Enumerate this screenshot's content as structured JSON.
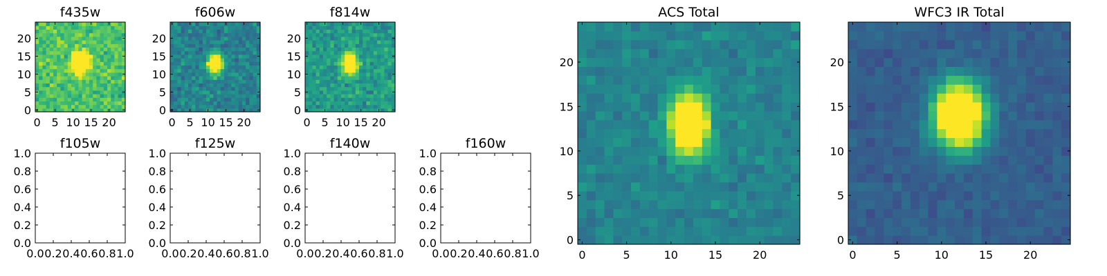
{
  "chart_data": [
    {
      "type": "heatmap",
      "title": "f435w",
      "grid_size": 25,
      "cmap": "viridis",
      "xlim": [
        -0.5,
        24.5
      ],
      "ylim": [
        -0.5,
        24.5
      ],
      "xticks": [
        0,
        5,
        10,
        15,
        20
      ],
      "yticks": [
        0,
        5,
        10,
        15,
        20
      ],
      "source_center": [
        12,
        13
      ],
      "source_sigma": [
        1.5,
        2.0
      ],
      "background_level": 0.72,
      "noise_level": 0.22,
      "seed": 11
    },
    {
      "type": "heatmap",
      "title": "f606w",
      "grid_size": 25,
      "cmap": "viridis",
      "xlim": [
        -0.5,
        24.5
      ],
      "ylim": [
        -0.5,
        24.5
      ],
      "xticks": [
        0,
        5,
        10,
        15,
        20
      ],
      "yticks": [
        0,
        5,
        10,
        15,
        20
      ],
      "source_center": [
        12,
        13
      ],
      "source_sigma": [
        1.3,
        1.8
      ],
      "background_level": 0.45,
      "noise_level": 0.22,
      "seed": 23
    },
    {
      "type": "heatmap",
      "title": "f814w",
      "grid_size": 25,
      "cmap": "viridis",
      "xlim": [
        -0.5,
        24.5
      ],
      "ylim": [
        -0.5,
        24.5
      ],
      "xticks": [
        0,
        5,
        10,
        15,
        20
      ],
      "yticks": [
        0,
        5,
        10,
        15,
        20
      ],
      "source_center": [
        12,
        13
      ],
      "source_sigma": [
        1.3,
        1.8
      ],
      "background_level": 0.55,
      "noise_level": 0.22,
      "seed": 37
    },
    {
      "type": "empty",
      "title": "f105w",
      "xlim": [
        0,
        1
      ],
      "ylim": [
        0,
        1
      ],
      "xticks": [
        "0.0",
        "0.2",
        "0.4",
        "0.6",
        "0.8",
        "1.0"
      ],
      "yticks": [
        "0.0",
        "0.2",
        "0.4",
        "0.6",
        "0.8",
        "1.0"
      ]
    },
    {
      "type": "empty",
      "title": "f125w",
      "xlim": [
        0,
        1
      ],
      "ylim": [
        0,
        1
      ],
      "xticks": [
        "0.0",
        "0.2",
        "0.4",
        "0.6",
        "0.8",
        "1.0"
      ],
      "yticks": [
        "0.0",
        "0.2",
        "0.4",
        "0.6",
        "0.8",
        "1.0"
      ]
    },
    {
      "type": "empty",
      "title": "f140w",
      "xlim": [
        0,
        1
      ],
      "ylim": [
        0,
        1
      ],
      "xticks": [
        "0.0",
        "0.2",
        "0.4",
        "0.6",
        "0.8",
        "1.0"
      ],
      "yticks": [
        "0.0",
        "0.2",
        "0.4",
        "0.6",
        "0.8",
        "1.0"
      ]
    },
    {
      "type": "empty",
      "title": "f160w",
      "xlim": [
        0,
        1
      ],
      "ylim": [
        0,
        1
      ],
      "xticks": [
        "0.0",
        "0.2",
        "0.4",
        "0.6",
        "0.8",
        "1.0"
      ],
      "yticks": [
        "0.0",
        "0.2",
        "0.4",
        "0.6",
        "0.8",
        "1.0"
      ]
    },
    {
      "type": "heatmap",
      "title": "ACS Total",
      "grid_size": 25,
      "cmap": "viridis",
      "xlim": [
        -0.5,
        24.5
      ],
      "ylim": [
        -0.5,
        24.5
      ],
      "xticks": [
        0,
        5,
        10,
        15,
        20
      ],
      "yticks": [
        0,
        5,
        10,
        15,
        20
      ],
      "source_center": [
        12,
        13
      ],
      "source_sigma": [
        1.4,
        2.2
      ],
      "background_level": 0.45,
      "noise_level": 0.13,
      "seed": 51
    },
    {
      "type": "heatmap",
      "title": "WFC3 IR Total",
      "grid_size": 25,
      "cmap": "viridis",
      "xlim": [
        -0.5,
        24.5
      ],
      "ylim": [
        -0.5,
        24.5
      ],
      "xticks": [
        0,
        5,
        10,
        15,
        20
      ],
      "yticks": [
        0,
        5,
        10,
        15,
        20
      ],
      "source_center": [
        12,
        14
      ],
      "source_sigma": [
        2.0,
        2.6
      ],
      "background_level": 0.3,
      "noise_level": 0.09,
      "seed": 73
    }
  ]
}
